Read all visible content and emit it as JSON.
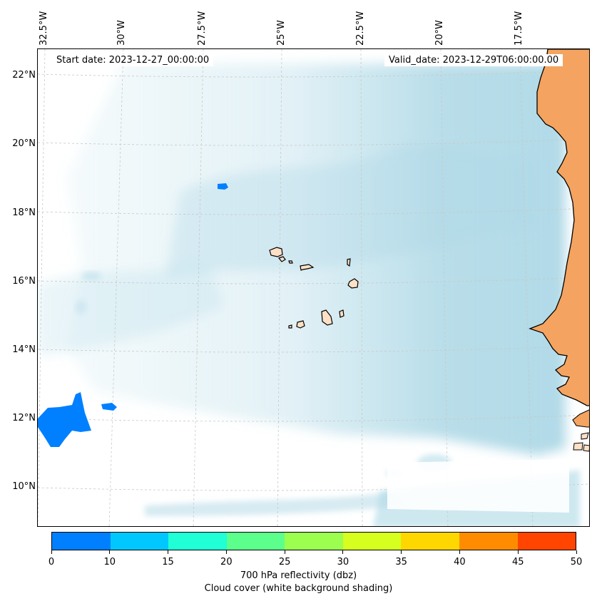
{
  "map": {
    "start_date_text": "Start date: 2023-12-27_00:00:00",
    "valid_date_text": "Valid_date: 2023-12-29T06:00:00.00",
    "longitude_labels": [
      "32.5°W",
      "30°W",
      "27.5°W",
      "25°W",
      "22.5°W",
      "20°W",
      "17.5°W"
    ],
    "latitude_labels": [
      "22°N",
      "20°N",
      "18°N",
      "16°N",
      "14°N",
      "12°N",
      "10°N"
    ],
    "land_color": "#f4a460",
    "island_color": "#fde0c5",
    "cloud_color": "#add8e6",
    "reflectivity_color": "#0080ff",
    "gridline_color": "#c8c8c8"
  },
  "colorbar": {
    "colors": [
      "#0080ff",
      "#00c8ff",
      "#20ffd6",
      "#5cff8c",
      "#9cff50",
      "#d6ff20",
      "#ffd700",
      "#ff8c00",
      "#ff4500"
    ],
    "tick_labels": [
      "0",
      "10",
      "15",
      "20",
      "25",
      "30",
      "35",
      "40",
      "45",
      "50"
    ],
    "label_line1": "700 hPa reflectivity (dbz)",
    "label_line2": "Cloud cover (white background shading)"
  }
}
